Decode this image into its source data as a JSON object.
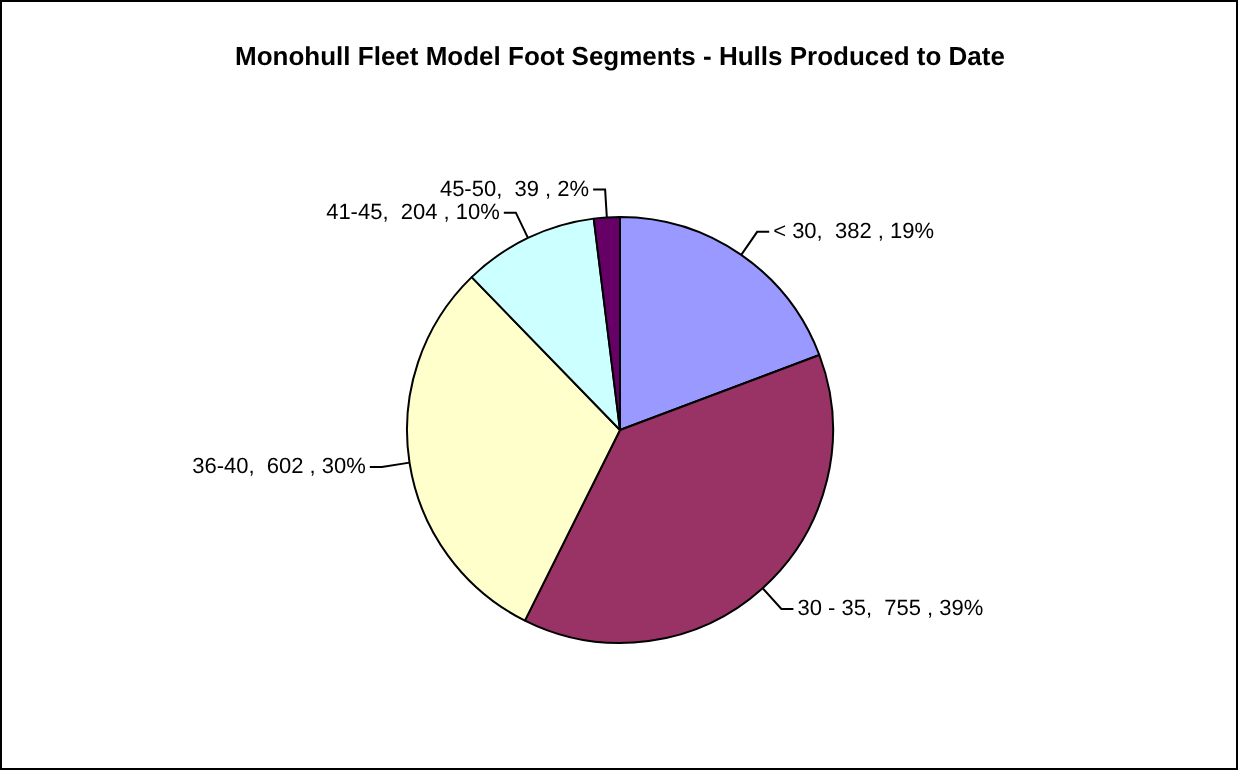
{
  "chart_data": {
    "type": "pie",
    "title": "Monohull Fleet Model Foot Segments - Hulls Produced to Date",
    "categories": [
      "< 30",
      "30 - 35",
      "36-40",
      "41-45",
      "45-50"
    ],
    "values": [
      382,
      755,
      602,
      204,
      39
    ],
    "colors": [
      "#9999ff",
      "#993366",
      "#ffffcc",
      "#ccffff",
      "#660066"
    ],
    "value_labels": [
      "382 , 19%",
      "755 , 39%",
      "602 , 30%",
      "204 , 10%",
      "39 , 2%"
    ],
    "legend": false
  }
}
